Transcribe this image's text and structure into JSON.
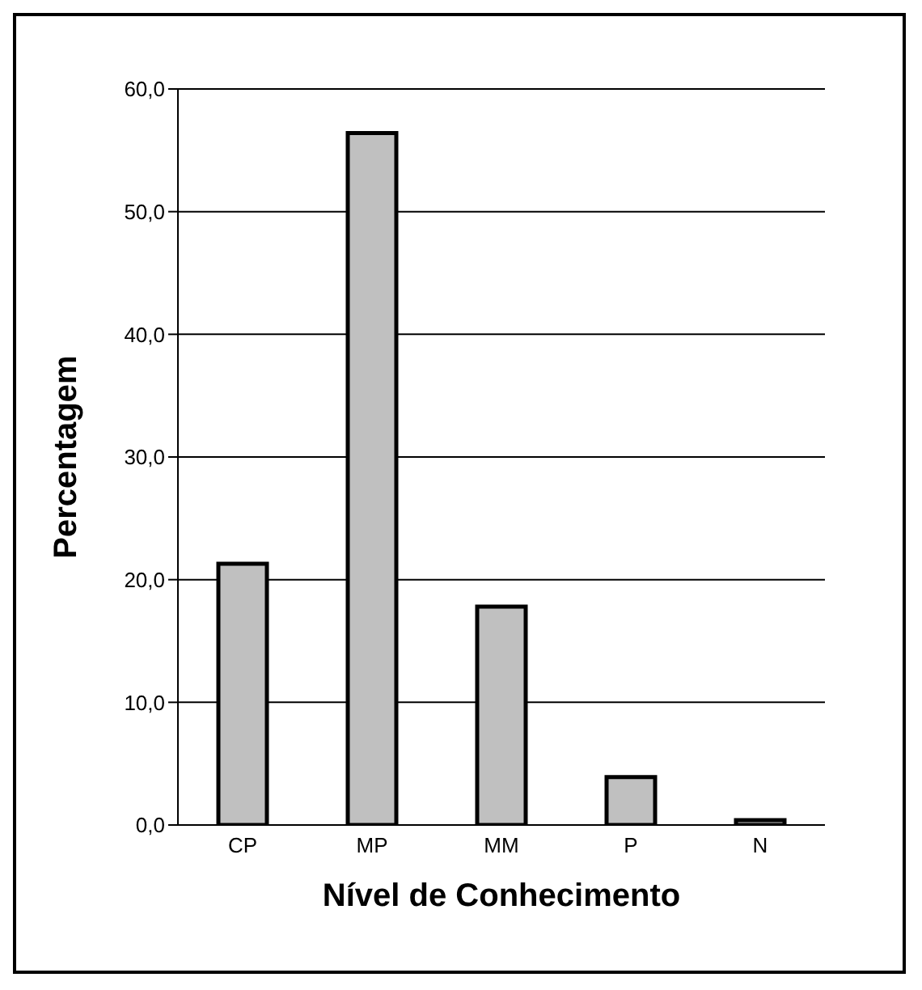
{
  "chart_data": {
    "type": "bar",
    "xlabel": "Nível de Conhecimento",
    "ylabel": "Percentagem",
    "categories": [
      "CP",
      "MP",
      "MM",
      "P",
      "N"
    ],
    "values": [
      21.3,
      56.4,
      17.8,
      3.9,
      0.4
    ],
    "color": "#c0c0c0",
    "ylim": [
      0,
      60
    ],
    "yticks": [
      {
        "value": 0,
        "label": "0,0"
      },
      {
        "value": 10,
        "label": "10,0"
      },
      {
        "value": 20,
        "label": "20,0"
      },
      {
        "value": 30,
        "label": "30,0"
      },
      {
        "value": 40,
        "label": "40,0"
      },
      {
        "value": 50,
        "label": "50,0"
      },
      {
        "value": 60,
        "label": "60,0"
      }
    ],
    "grid": "y"
  }
}
